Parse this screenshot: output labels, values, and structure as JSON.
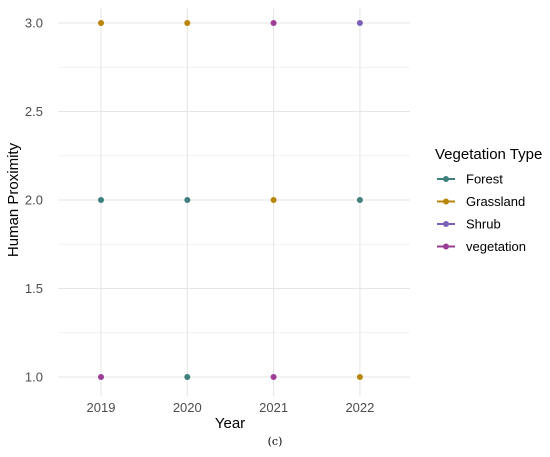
{
  "chart_data": {
    "type": "scatter",
    "title": "",
    "xlabel": "Year",
    "ylabel": "Human Proximity",
    "caption": "(c)",
    "x_categories": [
      "2019",
      "2020",
      "2021",
      "2022"
    ],
    "y_ticks": [
      "1.0",
      "1.5",
      "2.0",
      "2.5",
      "3.0"
    ],
    "ylim": [
      0.9,
      3.0
    ],
    "grid": true,
    "legend": {
      "title": "Vegetation Type",
      "placement": "right"
    },
    "series": [
      {
        "name": "Forest",
        "color": "#3f7f7c",
        "points": [
          {
            "x": "2019",
            "y": 2
          },
          {
            "x": "2020",
            "y": 2
          },
          {
            "x": "2020",
            "y": 1
          },
          {
            "x": "2022",
            "y": 2
          }
        ]
      },
      {
        "name": "Grassland",
        "color": "#b8860b",
        "points": [
          {
            "x": "2019",
            "y": 3
          },
          {
            "x": "2020",
            "y": 3
          },
          {
            "x": "2021",
            "y": 2
          },
          {
            "x": "2022",
            "y": 1
          }
        ]
      },
      {
        "name": "Shrub",
        "color": "#7b62b8",
        "points": [
          {
            "x": "2022",
            "y": 3
          }
        ]
      },
      {
        "name": "vegetation",
        "color": "#9b3d96",
        "points": [
          {
            "x": "2019",
            "y": 1
          },
          {
            "x": "2021",
            "y": 3
          },
          {
            "x": "2021",
            "y": 1
          }
        ]
      }
    ]
  }
}
